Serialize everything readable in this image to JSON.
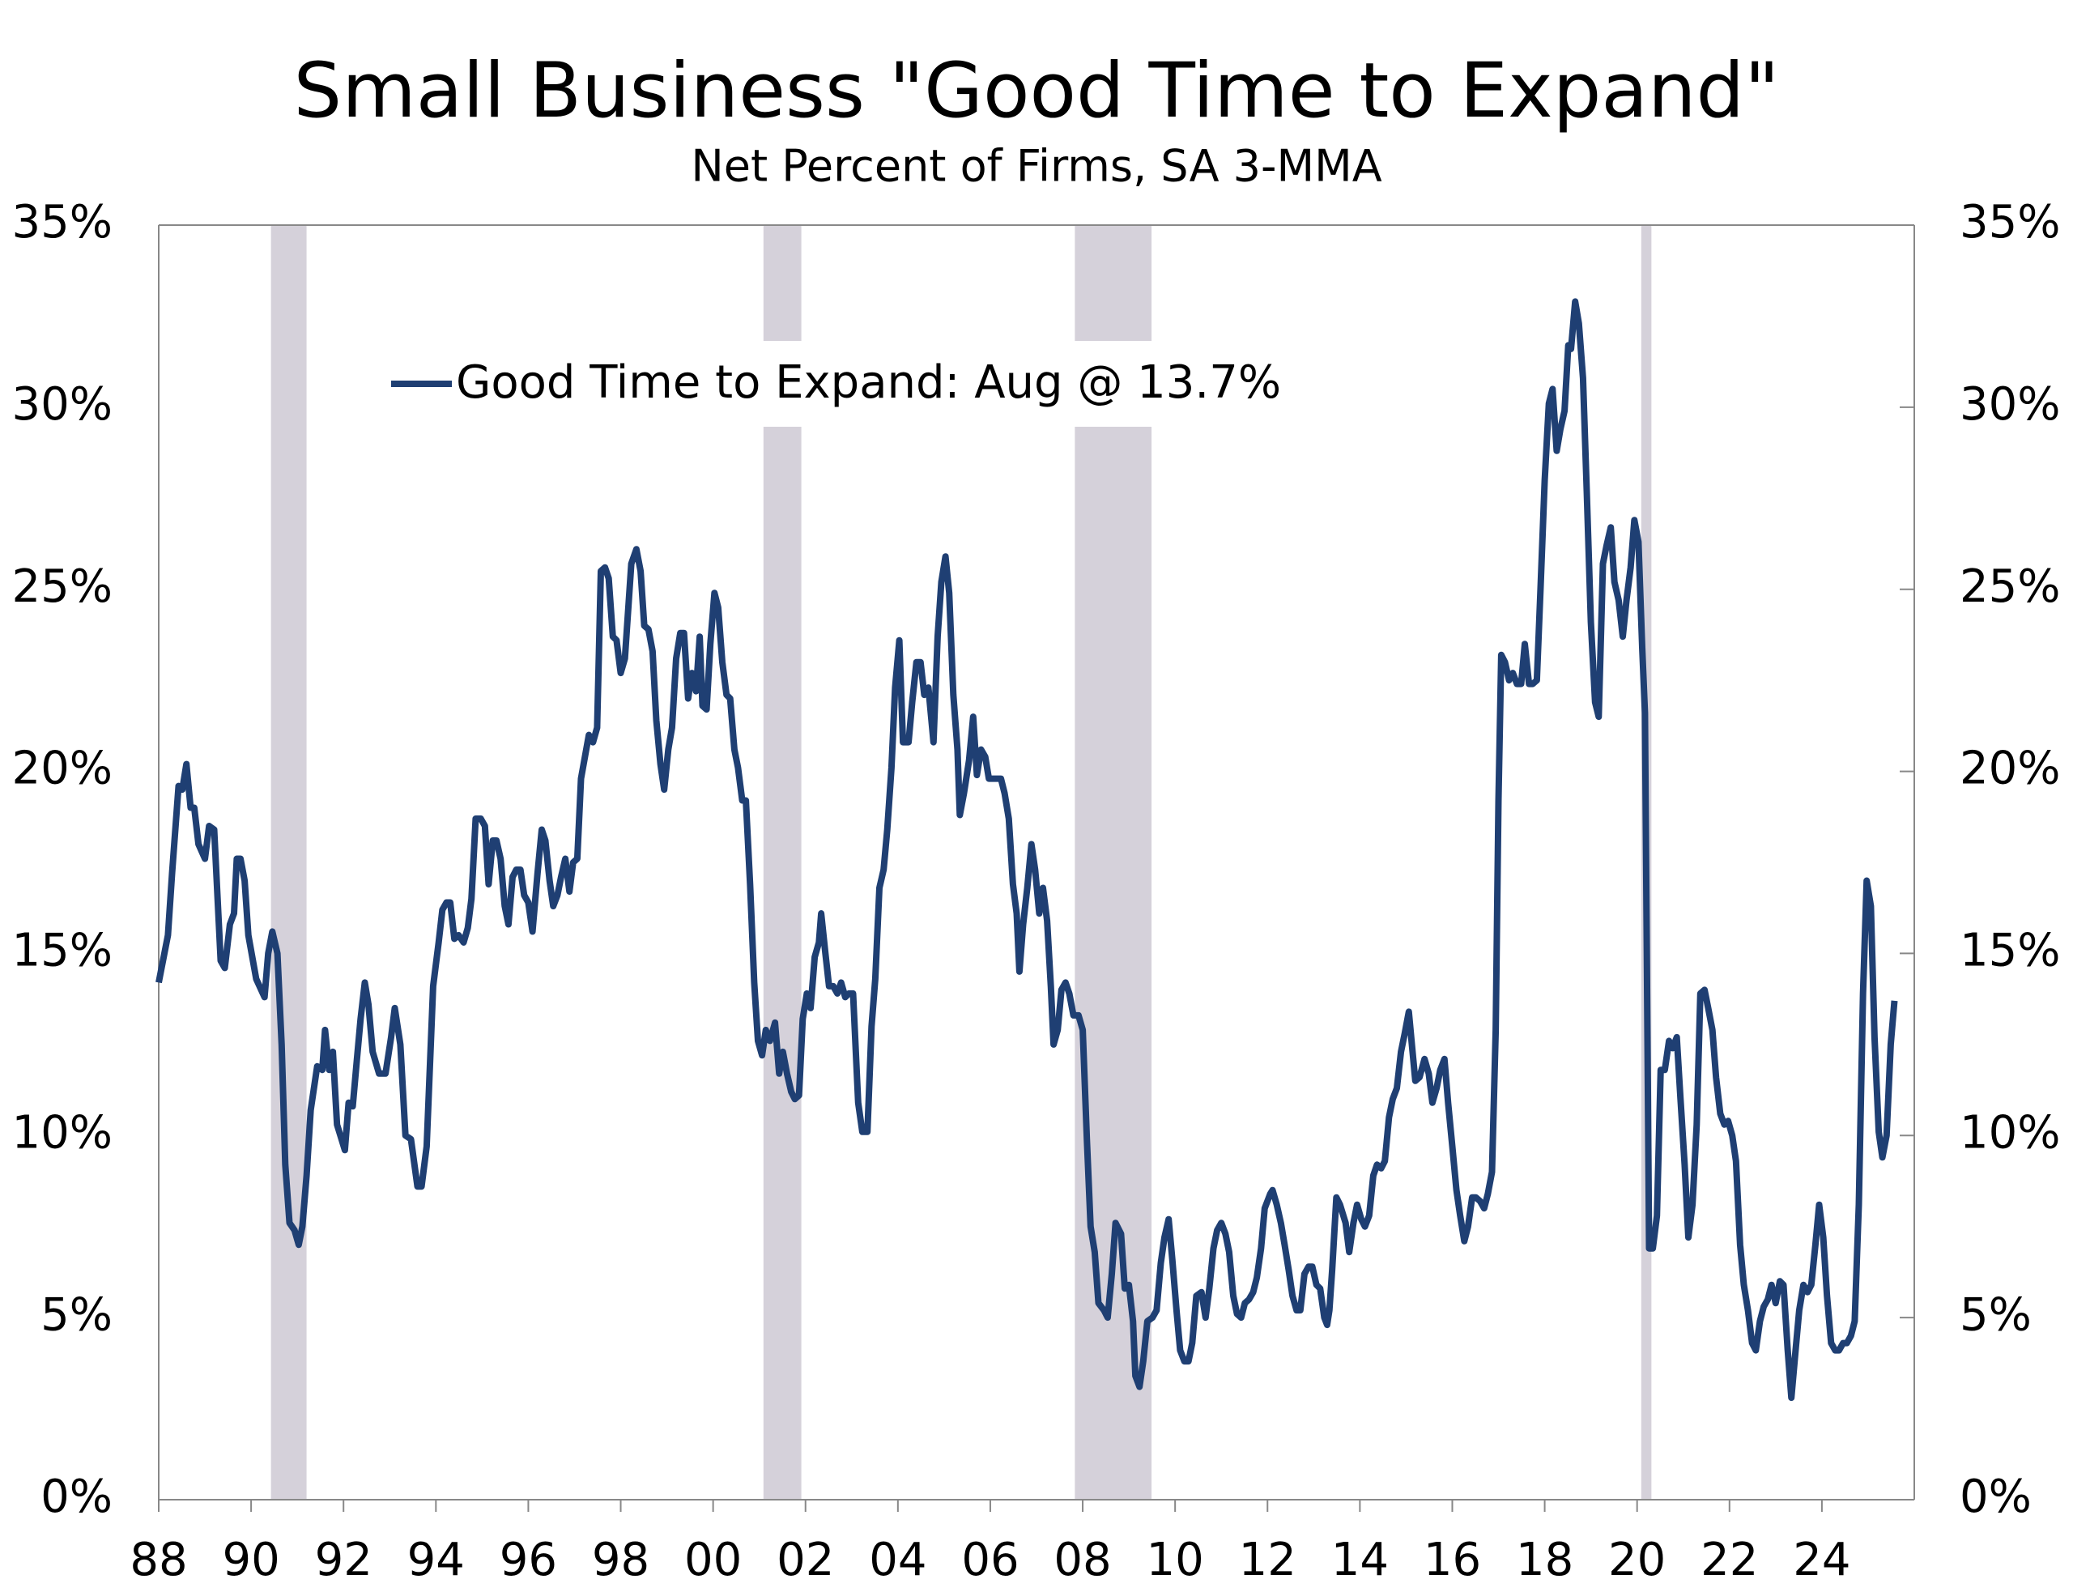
{
  "chart_data": {
    "type": "line",
    "title": "Small Business \"Good Time to Expand\"",
    "subtitle": "Net Percent of Firms, SA 3-MMA",
    "x": [
      1988.0,
      1988.2,
      1988.29,
      1988.43,
      1988.51,
      1988.6,
      1988.69,
      1988.77,
      1988.86,
      1989.0,
      1989.09,
      1989.2,
      1989.34,
      1989.43,
      1989.54,
      1989.63,
      1989.69,
      1989.77,
      1989.86,
      1989.94,
      1990.11,
      1990.29,
      1990.37,
      1990.46,
      1990.57,
      1990.66,
      1990.74,
      1990.83,
      1990.94,
      1991.03,
      1991.11,
      1991.2,
      1991.29,
      1991.43,
      1991.54,
      1991.6,
      1991.69,
      1991.77,
      1991.86,
      1992.03,
      1992.11,
      1992.2,
      1992.29,
      1992.37,
      1992.46,
      1992.54,
      1992.63,
      1992.77,
      1992.91,
      1993.03,
      1993.11,
      1993.23,
      1993.34,
      1993.46,
      1993.6,
      1993.69,
      1993.8,
      1993.94,
      1994.06,
      1994.14,
      1994.23,
      1994.31,
      1994.4,
      1994.49,
      1994.6,
      1994.69,
      1994.77,
      1994.86,
      1994.97,
      1995.06,
      1995.14,
      1995.23,
      1995.31,
      1995.4,
      1995.49,
      1995.57,
      1995.66,
      1995.74,
      1995.83,
      1995.91,
      1996.0,
      1996.09,
      1996.2,
      1996.29,
      1996.37,
      1996.46,
      1996.54,
      1996.63,
      1996.71,
      1996.8,
      1996.89,
      1996.97,
      1997.06,
      1997.14,
      1997.31,
      1997.4,
      1997.49,
      1997.57,
      1997.66,
      1997.74,
      1997.83,
      1997.91,
      1998.0,
      1998.09,
      1998.23,
      1998.34,
      1998.43,
      1998.51,
      1998.6,
      1998.69,
      1998.77,
      1998.86,
      1998.94,
      1999.03,
      1999.11,
      1999.2,
      1999.29,
      1999.37,
      1999.46,
      1999.54,
      1999.63,
      1999.71,
      1999.77,
      1999.86,
      1999.94,
      2000.03,
      2000.11,
      2000.2,
      2000.29,
      2000.37,
      2000.46,
      2000.54,
      2000.63,
      2000.71,
      2000.8,
      2000.89,
      2000.97,
      2001.06,
      2001.14,
      2001.23,
      2001.34,
      2001.43,
      2001.51,
      2001.6,
      2001.69,
      2001.77,
      2001.86,
      2001.94,
      2002.03,
      2002.11,
      2002.2,
      2002.29,
      2002.34,
      2002.43,
      2002.51,
      2002.6,
      2002.69,
      2002.77,
      2002.86,
      2002.94,
      2003.03,
      2003.14,
      2003.23,
      2003.34,
      2003.43,
      2003.51,
      2003.6,
      2003.69,
      2003.77,
      2003.86,
      2003.94,
      2004.03,
      2004.11,
      2004.23,
      2004.31,
      2004.4,
      2004.49,
      2004.57,
      2004.66,
      2004.77,
      2004.86,
      2004.94,
      2005.03,
      2005.11,
      2005.2,
      2005.29,
      2005.34,
      2005.43,
      2005.54,
      2005.63,
      2005.71,
      2005.8,
      2005.89,
      2005.97,
      2006.06,
      2006.14,
      2006.23,
      2006.31,
      2006.4,
      2006.49,
      2006.57,
      2006.63,
      2006.71,
      2006.8,
      2006.89,
      2006.97,
      2007.06,
      2007.14,
      2007.23,
      2007.31,
      2007.37,
      2007.46,
      2007.54,
      2007.63,
      2007.71,
      2007.8,
      2007.91,
      2008.0,
      2008.09,
      2008.17,
      2008.26,
      2008.34,
      2008.46,
      2008.54,
      2008.63,
      2008.71,
      2008.83,
      2008.91,
      2009.0,
      2009.09,
      2009.14,
      2009.23,
      2009.31,
      2009.4,
      2009.51,
      2009.6,
      2009.69,
      2009.77,
      2009.86,
      2009.94,
      2010.03,
      2010.11,
      2010.2,
      2010.29,
      2010.37,
      2010.46,
      2010.57,
      2010.66,
      2010.74,
      2010.83,
      2010.91,
      2011.0,
      2011.09,
      2011.17,
      2011.26,
      2011.34,
      2011.43,
      2011.51,
      2011.6,
      2011.69,
      2011.77,
      2011.86,
      2011.94,
      2012.06,
      2012.11,
      2012.2,
      2012.29,
      2012.37,
      2012.46,
      2012.54,
      2012.63,
      2012.71,
      2012.8,
      2012.89,
      2012.97,
      2013.06,
      2013.14,
      2013.23,
      2013.29,
      2013.34,
      2013.4,
      2013.49,
      2013.57,
      2013.69,
      2013.77,
      2013.86,
      2013.94,
      2014.03,
      2014.11,
      2014.2,
      2014.29,
      2014.37,
      2014.46,
      2014.54,
      2014.63,
      2014.71,
      2014.8,
      2014.89,
      2014.97,
      2015.06,
      2015.14,
      2015.2,
      2015.29,
      2015.4,
      2015.49,
      2015.57,
      2015.66,
      2015.74,
      2015.83,
      2015.91,
      2016.0,
      2016.09,
      2016.17,
      2016.26,
      2016.34,
      2016.43,
      2016.51,
      2016.6,
      2016.69,
      2016.77,
      2016.86,
      2016.94,
      2017.0,
      2017.06,
      2017.14,
      2017.23,
      2017.31,
      2017.4,
      2017.49,
      2017.57,
      2017.66,
      2017.74,
      2017.83,
      2017.91,
      2018.0,
      2018.09,
      2018.17,
      2018.26,
      2018.34,
      2018.43,
      2018.51,
      2018.57,
      2018.66,
      2018.74,
      2018.83,
      2018.91,
      2019.0,
      2019.09,
      2019.17,
      2019.26,
      2019.34,
      2019.43,
      2019.51,
      2019.6,
      2019.69,
      2019.77,
      2019.86,
      2019.94,
      2020.03,
      2020.11,
      2020.17,
      2020.26,
      2020.34,
      2020.43,
      2020.51,
      2020.6,
      2020.69,
      2020.77,
      2020.86,
      2020.94,
      2021.03,
      2021.11,
      2021.2,
      2021.29,
      2021.37,
      2021.46,
      2021.54,
      2021.63,
      2021.71,
      2021.8,
      2021.89,
      2021.97,
      2022.06,
      2022.14,
      2022.23,
      2022.31,
      2022.4,
      2022.49,
      2022.57,
      2022.66,
      2022.74,
      2022.83,
      2022.91,
      2023.0,
      2023.09,
      2023.17,
      2023.26,
      2023.34,
      2023.43,
      2023.51,
      2023.6,
      2023.69,
      2023.77,
      2023.86,
      2023.94,
      2024.03,
      2024.11,
      2024.2,
      2024.29,
      2024.37,
      2024.46,
      2024.54,
      2024.63,
      2024.71,
      2024.8,
      2024.89,
      2024.97,
      2025.06,
      2025.14,
      2025.23,
      2025.31,
      2025.4,
      2025.49,
      2025.57
    ],
    "series": [
      {
        "name": "Good Time to Expand: Aug @ 13.7%",
        "color": "#1f3f73",
        "values": [
          14.2,
          15.5,
          17.2,
          19.6,
          19.5,
          20.2,
          19.0,
          19.0,
          18.0,
          17.6,
          18.5,
          18.4,
          14.8,
          14.6,
          15.8,
          16.1,
          17.6,
          17.6,
          17.0,
          15.5,
          14.3,
          13.8,
          15.0,
          15.6,
          15.0,
          12.5,
          9.2,
          7.6,
          7.4,
          7.0,
          7.5,
          8.9,
          10.7,
          11.9,
          11.8,
          12.9,
          11.8,
          12.3,
          10.3,
          9.6,
          10.9,
          10.8,
          12.1,
          13.2,
          14.2,
          13.6,
          12.3,
          11.7,
          11.7,
          12.7,
          13.5,
          12.5,
          10.0,
          9.9,
          8.6,
          8.6,
          9.7,
          14.1,
          15.3,
          16.2,
          16.4,
          16.4,
          15.4,
          15.5,
          15.3,
          15.7,
          16.5,
          18.7,
          18.7,
          18.5,
          16.9,
          18.1,
          18.1,
          17.6,
          16.3,
          15.8,
          17.1,
          17.3,
          17.3,
          16.6,
          16.4,
          15.6,
          17.2,
          18.4,
          18.1,
          17.0,
          16.3,
          16.6,
          17.1,
          17.6,
          16.7,
          17.5,
          17.6,
          19.8,
          21.0,
          20.8,
          21.2,
          25.5,
          25.6,
          25.3,
          23.7,
          23.6,
          22.7,
          23.1,
          25.7,
          26.1,
          25.5,
          24.0,
          23.9,
          23.3,
          21.4,
          20.2,
          19.5,
          20.6,
          21.2,
          23.1,
          23.8,
          23.8,
          22.0,
          22.7,
          22.2,
          23.7,
          21.8,
          21.7,
          23.5,
          24.9,
          24.5,
          23.0,
          22.1,
          22.0,
          20.6,
          20.1,
          19.2,
          19.2,
          16.9,
          14.2,
          12.6,
          12.2,
          12.9,
          12.6,
          13.1,
          11.7,
          12.3,
          11.7,
          11.2,
          11.0,
          11.1,
          13.2,
          13.9,
          13.5,
          14.9,
          15.3,
          16.1,
          15.0,
          14.1,
          14.1,
          13.9,
          14.2,
          13.8,
          13.9,
          13.9,
          10.9,
          10.1,
          10.1,
          13.0,
          14.3,
          16.8,
          17.3,
          18.4,
          20.1,
          22.3,
          23.6,
          20.8,
          20.8,
          21.9,
          23.0,
          23.0,
          22.1,
          22.3,
          20.8,
          23.7,
          25.2,
          25.9,
          24.9,
          22.1,
          20.6,
          18.8,
          19.4,
          20.3,
          21.5,
          19.9,
          20.6,
          20.4,
          19.8,
          19.8,
          19.8,
          19.8,
          19.4,
          18.7,
          16.9,
          16.1,
          14.5,
          15.8,
          16.8,
          18.0,
          17.3,
          16.1,
          16.8,
          15.9,
          14.1,
          12.5,
          12.9,
          14.0,
          14.2,
          13.9,
          13.3,
          13.3,
          12.9,
          9.9,
          7.5,
          6.8,
          5.4,
          5.2,
          5.0,
          6.2,
          7.6,
          7.3,
          5.8,
          5.9,
          4.9,
          3.4,
          3.1,
          3.8,
          4.9,
          5.0,
          5.2,
          6.5,
          7.2,
          7.7,
          6.6,
          5.2,
          4.1,
          3.8,
          3.8,
          4.3,
          5.6,
          5.7,
          5.0,
          5.8,
          6.9,
          7.4,
          7.6,
          7.3,
          6.8,
          5.6,
          5.1,
          5.0,
          5.4,
          5.5,
          5.7,
          6.1,
          6.9,
          8.0,
          8.4,
          8.5,
          8.1,
          7.6,
          7.0,
          6.3,
          5.6,
          5.2,
          5.2,
          6.2,
          6.4,
          6.4,
          5.9,
          5.8,
          5.0,
          4.8,
          5.2,
          6.3,
          8.3,
          8.1,
          7.6,
          6.8,
          7.6,
          8.1,
          7.7,
          7.5,
          7.8,
          8.9,
          9.2,
          9.1,
          9.3,
          10.5,
          11.0,
          11.3,
          12.3,
          12.8,
          13.4,
          12.3,
          11.5,
          11.6,
          12.1,
          11.7,
          10.9,
          11.3,
          11.8,
          12.1,
          10.9,
          9.7,
          8.5,
          7.8,
          7.1,
          7.5,
          8.3,
          8.3,
          8.2,
          8.0,
          8.4,
          9.0,
          12.9,
          19.2,
          23.2,
          23.0,
          22.5,
          22.7,
          22.4,
          22.4,
          23.5,
          22.4,
          22.4,
          22.5,
          25.0,
          28.0,
          30.1,
          30.5,
          28.8,
          29.4,
          29.9,
          31.7,
          31.6,
          32.9,
          32.3,
          30.8,
          27.7,
          24.1,
          21.9,
          21.5,
          25.7,
          26.2,
          26.7,
          25.2,
          24.7,
          23.7,
          24.7,
          25.6,
          26.9,
          26.3,
          23.4,
          21.6,
          6.9,
          6.9,
          7.8,
          11.8,
          11.8,
          12.6,
          12.4,
          12.7,
          11.0,
          9.2,
          7.2,
          8.1,
          10.3,
          13.9,
          14.0,
          13.5,
          12.9,
          11.6,
          10.6,
          10.3,
          10.4,
          10.0,
          9.3,
          7.0,
          5.9,
          5.2,
          4.3,
          4.1,
          4.9,
          5.3,
          5.5,
          5.9,
          5.4,
          6.0,
          5.9,
          4.1,
          2.8,
          4.1,
          5.2,
          5.9,
          5.7,
          5.9,
          7.0,
          8.1,
          7.2,
          5.6,
          4.3,
          4.1,
          4.1,
          4.3,
          4.3,
          4.5,
          4.9,
          8.1,
          13.9,
          17.0,
          16.3,
          12.7,
          10.1,
          9.4,
          10.0,
          12.5,
          13.7
        ]
      }
    ],
    "recessions": [
      [
        1990.43,
        1991.2
      ],
      [
        2001.09,
        2001.91
      ],
      [
        2007.83,
        2009.49
      ],
      [
        2020.09,
        2020.31
      ]
    ],
    "recession_color": "#d5d1da",
    "xlim": [
      1988,
      2026
    ],
    "xticks": [
      {
        "value": 1988,
        "label": "88"
      },
      {
        "value": 1990,
        "label": "90"
      },
      {
        "value": 1992,
        "label": "92"
      },
      {
        "value": 1994,
        "label": "94"
      },
      {
        "value": 1996,
        "label": "96"
      },
      {
        "value": 1998,
        "label": "98"
      },
      {
        "value": 2000,
        "label": "00"
      },
      {
        "value": 2002,
        "label": "02"
      },
      {
        "value": 2004,
        "label": "04"
      },
      {
        "value": 2006,
        "label": "06"
      },
      {
        "value": 2008,
        "label": "08"
      },
      {
        "value": 2010,
        "label": "10"
      },
      {
        "value": 2012,
        "label": "12"
      },
      {
        "value": 2014,
        "label": "14"
      },
      {
        "value": 2016,
        "label": "16"
      },
      {
        "value": 2018,
        "label": "18"
      },
      {
        "value": 2020,
        "label": "20"
      },
      {
        "value": 2022,
        "label": "22"
      },
      {
        "value": 2024,
        "label": "24"
      }
    ],
    "ylim": [
      0,
      35
    ],
    "yticks": [
      {
        "value": 0,
        "label": "0%"
      },
      {
        "value": 5,
        "label": "5%"
      },
      {
        "value": 10,
        "label": "10%"
      },
      {
        "value": 15,
        "label": "15%"
      },
      {
        "value": 20,
        "label": "20%"
      },
      {
        "value": 25,
        "label": "25%"
      },
      {
        "value": 30,
        "label": "30%"
      },
      {
        "value": 35,
        "label": "35%"
      }
    ]
  }
}
